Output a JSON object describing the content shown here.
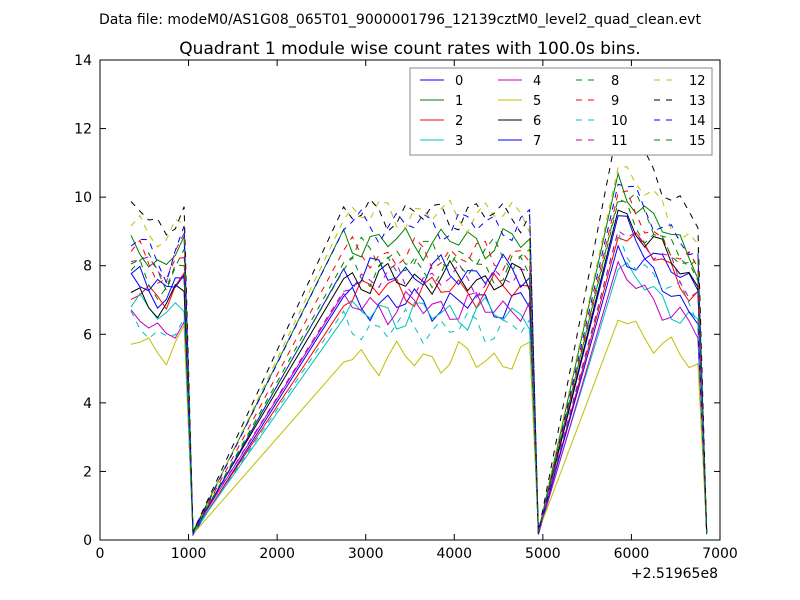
{
  "suptitle": "Data file: modeM0/AS1G08_065T01_9000001796_12139cztM0_level2_quad_clean.evt",
  "chart_data": {
    "type": "line",
    "title": "Quadrant 1 module wise count rates with 100.0s bins.",
    "xlabel": "",
    "ylabel": "",
    "x_offset_label": "+2.51965e8",
    "xlim": [
      0,
      7000
    ],
    "ylim": [
      0,
      14
    ],
    "xticks": [
      0,
      1000,
      2000,
      3000,
      4000,
      5000,
      6000,
      7000
    ],
    "yticks": [
      0,
      2,
      4,
      6,
      8,
      10,
      12,
      14
    ],
    "grid": false,
    "legend_position": "top-right",
    "legend_columns": 4,
    "x_segments": [
      [
        350,
        450,
        550,
        650,
        750,
        850,
        950,
        1050
      ],
      [
        2750,
        2850,
        2950,
        3050,
        3150,
        3250,
        3350,
        3450,
        3550,
        3650,
        3750,
        3850,
        3950,
        4050,
        4150,
        4250,
        4350,
        4450,
        4550,
        4650,
        4750,
        4850,
        4950
      ],
      [
        5850,
        5950,
        6050,
        6150,
        6250,
        6350,
        6450,
        6550,
        6650,
        6750,
        6850
      ]
    ],
    "gaps": [
      [
        1080,
        2680
      ],
      [
        4990,
        5820
      ]
    ],
    "series": [
      {
        "name": "0",
        "color": "#0000ff",
        "dash": "solid"
      },
      {
        "name": "1",
        "color": "#008000",
        "dash": "solid"
      },
      {
        "name": "2",
        "color": "#ff0000",
        "dash": "solid"
      },
      {
        "name": "3",
        "color": "#00bfbf",
        "dash": "solid"
      },
      {
        "name": "4",
        "color": "#bf00bf",
        "dash": "solid"
      },
      {
        "name": "5",
        "color": "#bfbf00",
        "dash": "solid"
      },
      {
        "name": "6",
        "color": "#000000",
        "dash": "solid"
      },
      {
        "name": "7",
        "color": "#0000ff",
        "dash": "solid"
      },
      {
        "name": "8",
        "color": "#008000",
        "dash": "dashed"
      },
      {
        "name": "9",
        "color": "#ff0000",
        "dash": "dashed"
      },
      {
        "name": "10",
        "color": "#00bfbf",
        "dash": "dashed"
      },
      {
        "name": "11",
        "color": "#bf00bf",
        "dash": "dashed"
      },
      {
        "name": "12",
        "color": "#bfbf00",
        "dash": "dashed"
      },
      {
        "name": "13",
        "color": "#000000",
        "dash": "dashed"
      },
      {
        "name": "14",
        "color": "#0000ff",
        "dash": "dashed"
      },
      {
        "name": "15",
        "color": "#008000",
        "dash": "dashed"
      }
    ]
  }
}
